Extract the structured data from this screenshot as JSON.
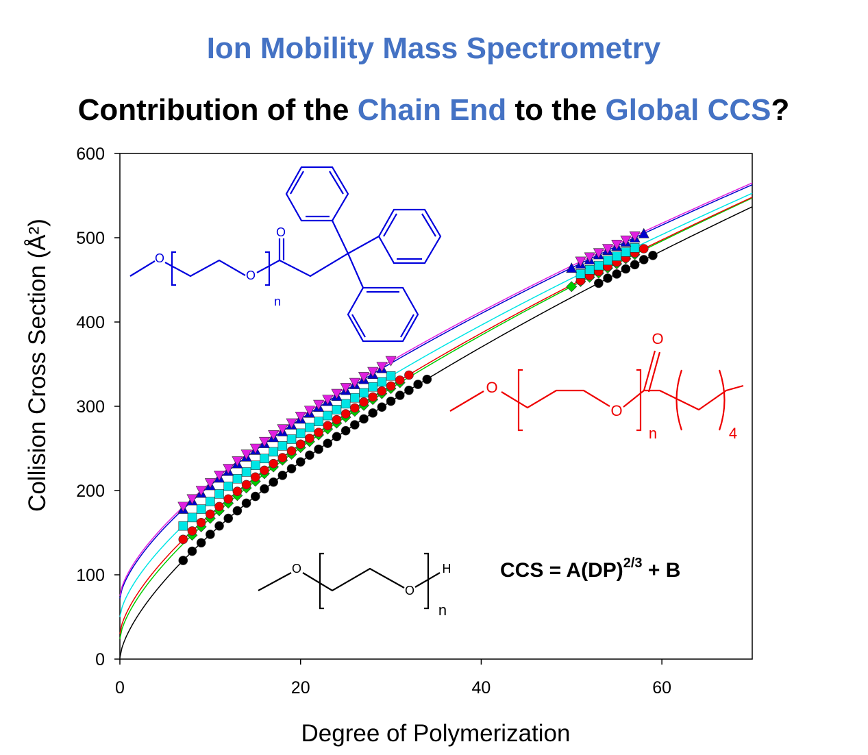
{
  "chart_data": {
    "type": "scatter",
    "title": "Ion Mobility Mass Spectrometry",
    "subtitle_parts": [
      "Contribution of the ",
      "Chain End",
      " to the ",
      "Global CCS",
      "?"
    ],
    "x_label": "Degree of Polymerization",
    "y_label": "Collision Cross Section (Å²)",
    "xlim": [
      0,
      70
    ],
    "ylim": [
      0,
      600
    ],
    "xticks": [
      0,
      20,
      40,
      60
    ],
    "yticks": [
      0,
      100,
      200,
      300,
      400,
      500,
      600
    ],
    "equation": {
      "left": "CCS = A(DP)",
      "exponent": "2/3",
      "right": " + B"
    },
    "structures": {
      "blue": {
        "o1": "O",
        "o2": "O",
        "o3": "O",
        "n": "n"
      },
      "red": {
        "o1": "O",
        "o2": "O",
        "o3": "O",
        "n": "n",
        "count": "4"
      },
      "black": {
        "o1": "O",
        "o2": "O",
        "h": "H",
        "n": "n"
      }
    },
    "series": [
      {
        "color": "#000000",
        "marker": "circle",
        "fit": {
          "a": 31.5,
          "b": 1.7
        },
        "x": [
          7,
          8,
          9,
          10,
          11,
          12,
          13,
          14,
          15,
          16,
          17,
          18,
          19,
          20,
          21,
          22,
          23,
          24,
          25,
          26,
          27,
          28,
          29,
          30,
          31,
          32,
          33,
          34,
          53,
          54,
          55,
          56,
          57,
          58,
          59
        ],
        "values": [
          117,
          128,
          138,
          148,
          158,
          167,
          176,
          185,
          193,
          202,
          210,
          218,
          226,
          234,
          242,
          249,
          256,
          264,
          271,
          278,
          285,
          292,
          299,
          306,
          313,
          319,
          326,
          332,
          446,
          452,
          457,
          463,
          468,
          474,
          479
        ]
      },
      {
        "color": "#00cc00",
        "marker": "diamond",
        "fit": {
          "a": 30.8,
          "b": 24
        },
        "x": [
          8,
          9,
          10,
          11,
          12,
          13,
          14,
          15,
          16,
          17,
          18,
          19,
          20,
          21,
          22,
          23,
          24,
          25,
          26,
          27,
          28,
          29,
          30,
          31,
          50,
          51,
          52,
          53,
          54,
          55,
          56,
          57
        ],
        "values": [
          147,
          157,
          167,
          176,
          185,
          194,
          203,
          211,
          220,
          228,
          236,
          243,
          251,
          258,
          266,
          273,
          280,
          287,
          294,
          301,
          308,
          315,
          321,
          328,
          442,
          448,
          453,
          458,
          464,
          469,
          475,
          480
        ]
      },
      {
        "color": "#ee0000",
        "marker": "circle",
        "fit": {
          "a": 30.5,
          "b": 30
        },
        "x": [
          7,
          8,
          9,
          10,
          11,
          12,
          13,
          14,
          15,
          16,
          17,
          18,
          19,
          20,
          21,
          22,
          23,
          24,
          25,
          26,
          27,
          28,
          29,
          30,
          31,
          32,
          51,
          52,
          53,
          54,
          55,
          56,
          57,
          58
        ],
        "values": [
          142,
          152,
          162,
          172,
          181,
          190,
          199,
          207,
          216,
          224,
          232,
          239,
          247,
          255,
          262,
          269,
          277,
          284,
          291,
          298,
          305,
          311,
          318,
          324,
          331,
          337,
          449,
          455,
          460,
          466,
          471,
          476,
          482,
          487
        ]
      },
      {
        "color": "#00e5e5",
        "marker": "square",
        "fit": {
          "a": 29.6,
          "b": 50
        },
        "x": [
          7,
          8,
          9,
          10,
          11,
          12,
          13,
          14,
          15,
          16,
          17,
          18,
          19,
          20,
          21,
          22,
          23,
          24,
          25,
          26,
          27,
          28,
          29,
          30,
          51,
          52,
          53,
          54,
          55,
          56,
          57
        ],
        "values": [
          158,
          168,
          178,
          187,
          196,
          205,
          214,
          222,
          230,
          238,
          246,
          253,
          261,
          268,
          275,
          282,
          289,
          296,
          303,
          310,
          316,
          323,
          329,
          336,
          457,
          462,
          467,
          473,
          478,
          483,
          488
        ]
      },
      {
        "color": "#0000cc",
        "marker": "triangle-up",
        "fit": {
          "a": 28.9,
          "b": 72
        },
        "x": [
          7,
          8,
          9,
          10,
          11,
          12,
          13,
          14,
          15,
          16,
          17,
          18,
          19,
          20,
          21,
          22,
          23,
          24,
          25,
          26,
          27,
          28,
          29,
          50,
          51,
          52,
          53,
          54,
          55,
          56,
          57,
          58
        ],
        "values": [
          178,
          188,
          197,
          206,
          215,
          223,
          232,
          240,
          248,
          256,
          263,
          270,
          278,
          285,
          292,
          299,
          306,
          312,
          319,
          326,
          332,
          338,
          345,
          464,
          469,
          474,
          480,
          485,
          490,
          495,
          500,
          505
        ]
      },
      {
        "color": "#e020e0",
        "marker": "triangle-down",
        "fit": {
          "a": 28.85,
          "b": 75
        },
        "x": [
          7,
          8,
          9,
          10,
          11,
          12,
          13,
          14,
          15,
          16,
          17,
          18,
          19,
          20,
          21,
          22,
          23,
          24,
          25,
          26,
          27,
          28,
          29,
          30,
          51,
          52,
          53,
          54,
          55,
          56,
          57
        ],
        "values": [
          181,
          190,
          200,
          209,
          218,
          226,
          235,
          243,
          250,
          258,
          266,
          273,
          280,
          288,
          295,
          302,
          308,
          315,
          322,
          328,
          335,
          341,
          347,
          354,
          472,
          477,
          482,
          487,
          492,
          497,
          502
        ]
      }
    ]
  }
}
